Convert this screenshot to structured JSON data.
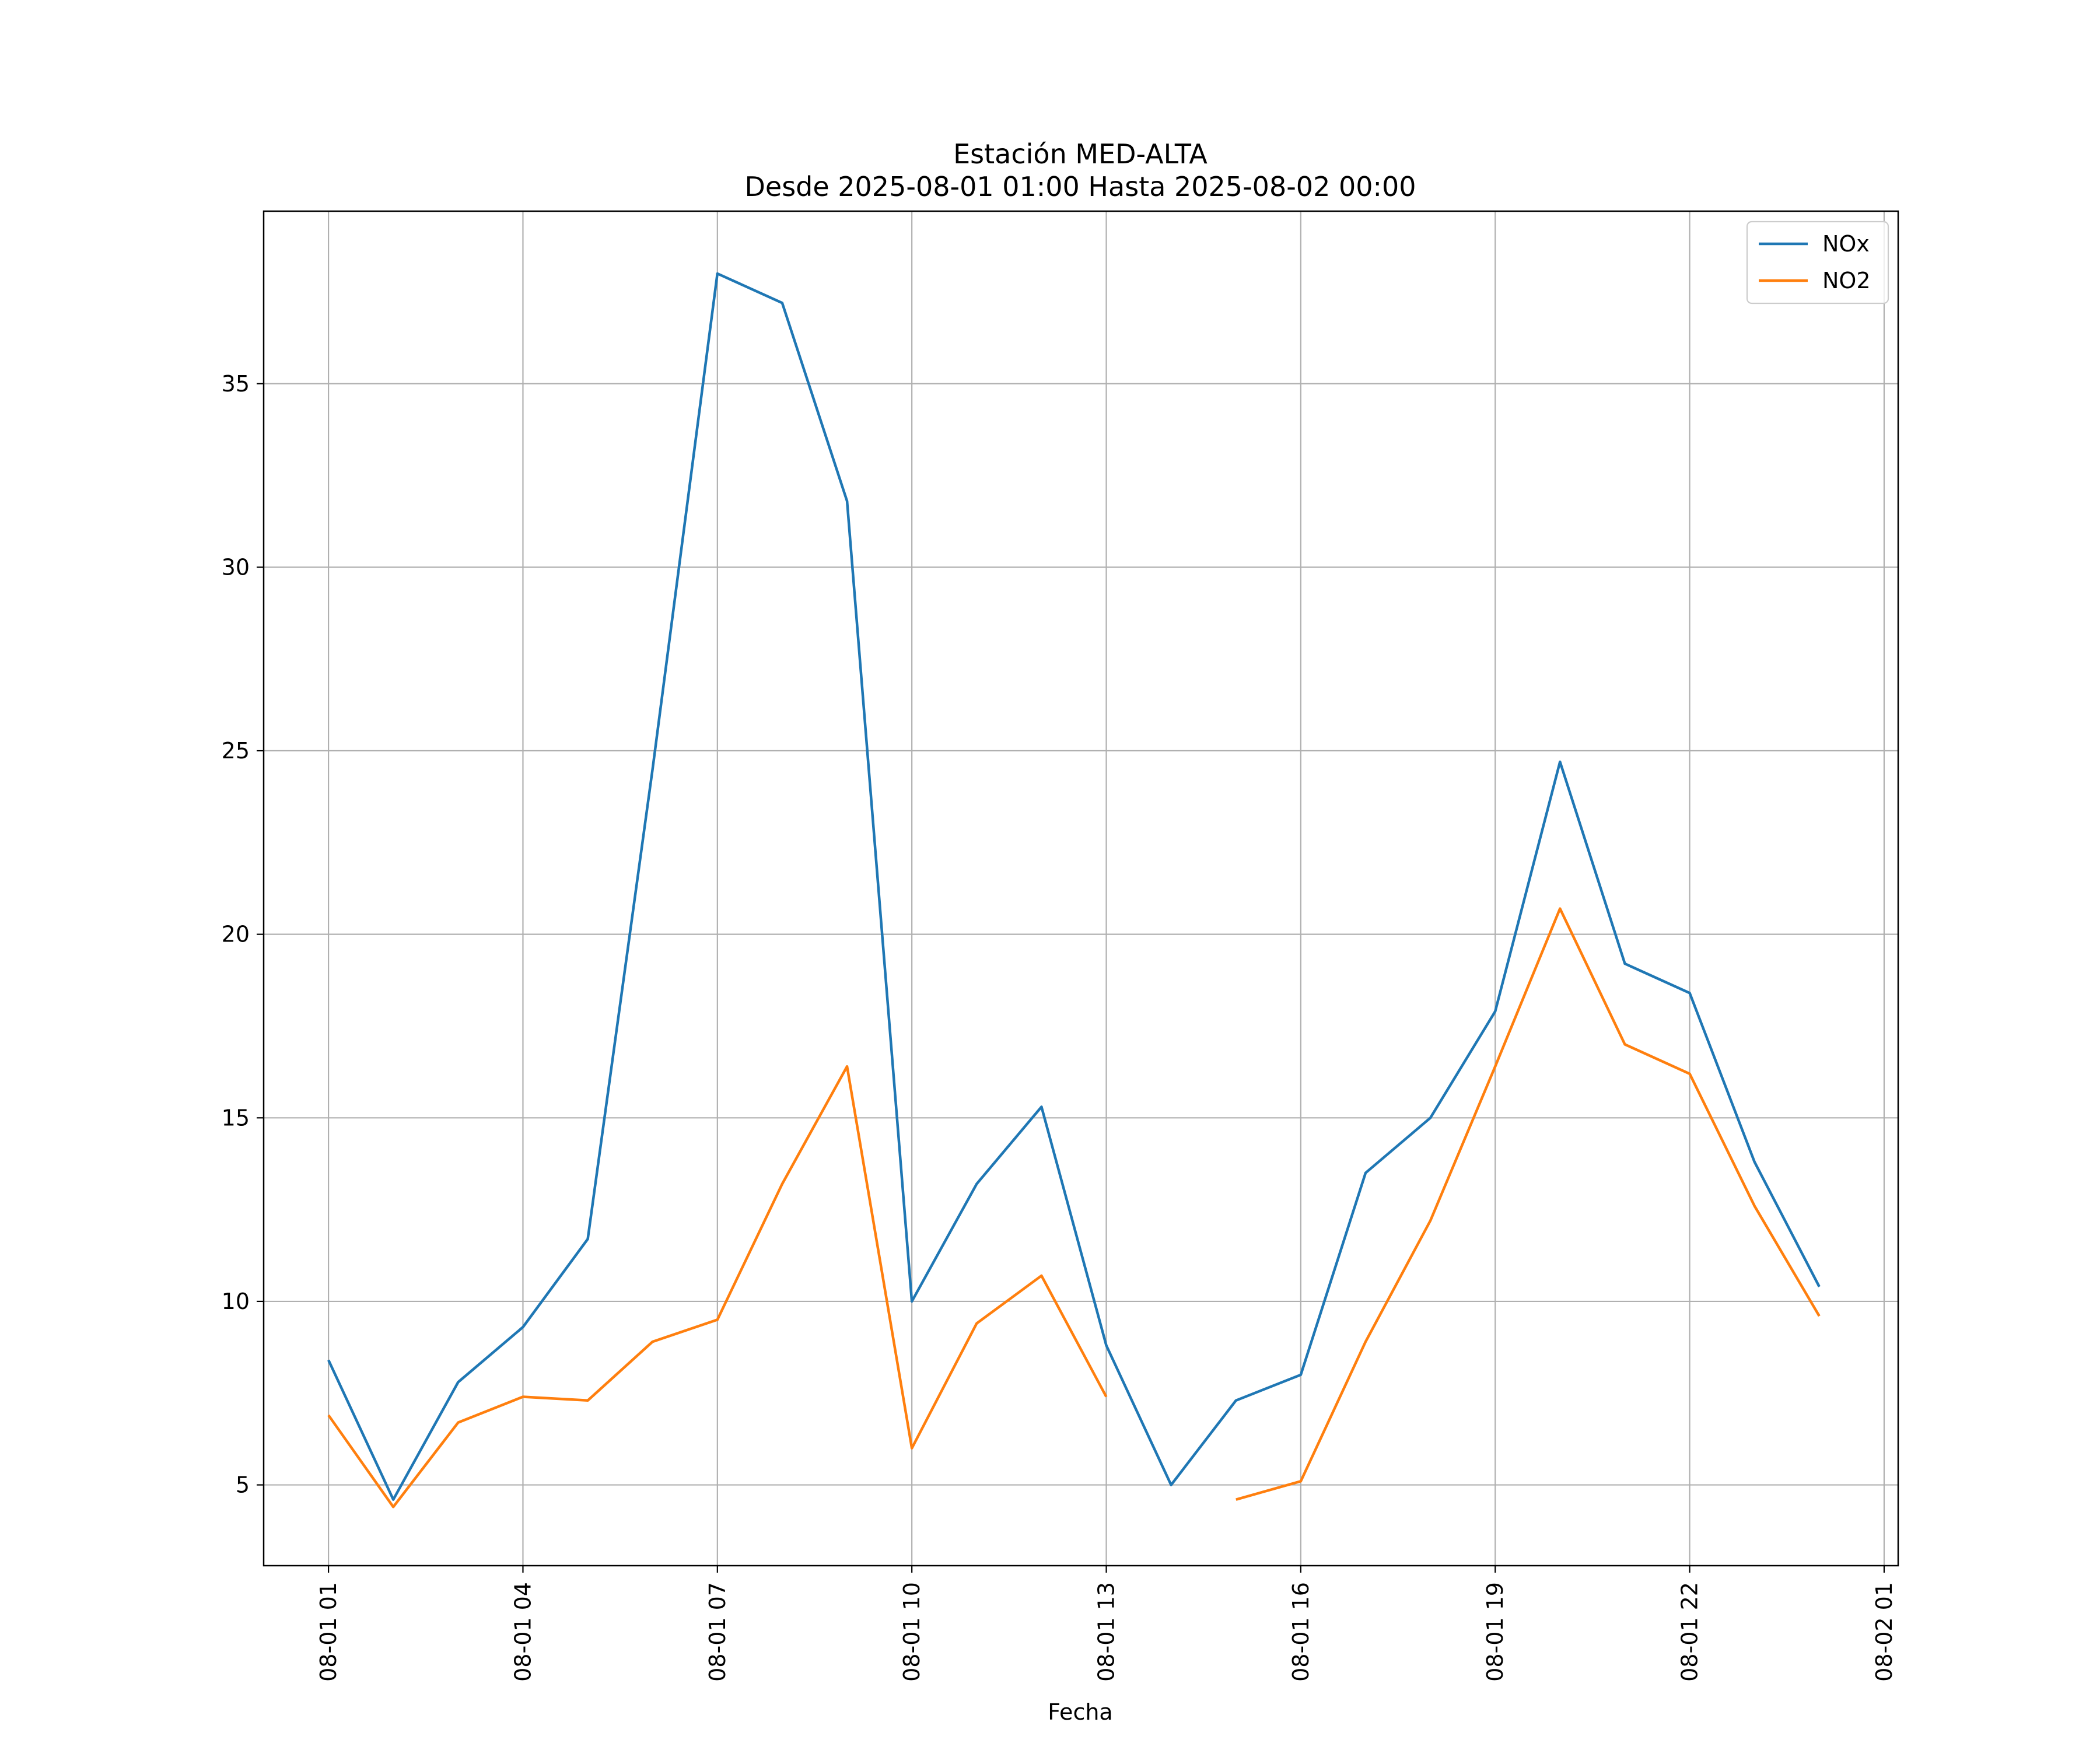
{
  "chart_data": {
    "type": "line",
    "title": "Estación MED-ALTA",
    "subtitle": "Desde 2025-08-01 01:00 Hasta 2025-08-02 00:00",
    "xlabel": "Fecha",
    "ylabel": "",
    "x_tick_labels": [
      "08-01 01",
      "08-01 04",
      "08-01 07",
      "08-01 10",
      "08-01 13",
      "08-01 16",
      "08-01 19",
      "08-01 22",
      "08-02 01"
    ],
    "y_tick_labels": [
      "5",
      "10",
      "15",
      "20",
      "25",
      "30",
      "35"
    ],
    "x": [
      "08-01 01",
      "08-01 02",
      "08-01 03",
      "08-01 04",
      "08-01 05",
      "08-01 06",
      "08-01 07",
      "08-01 08",
      "08-01 09",
      "08-01 10",
      "08-01 11",
      "08-01 12",
      "08-01 13",
      "08-01 14",
      "08-01 15",
      "08-01 16",
      "08-01 17",
      "08-01 18",
      "08-01 19",
      "08-01 20",
      "08-01 21",
      "08-01 22",
      "08-01 23",
      "08-02 00"
    ],
    "x_range": [
      "08-01 00:00",
      "08-02 01:13"
    ],
    "ylim": [
      2.8,
      39.7
    ],
    "grid": true,
    "legend_position": "top-right",
    "series": [
      {
        "name": "NOx",
        "color": "#1f77b4",
        "values": [
          8.4,
          4.6,
          7.8,
          9.3,
          11.7,
          24.5,
          38.0,
          37.2,
          31.8,
          10.0,
          13.2,
          15.3,
          8.8,
          5.0,
          7.3,
          8.0,
          13.5,
          15.0,
          17.9,
          24.7,
          19.2,
          18.4,
          13.8,
          10.4
        ]
      },
      {
        "name": "NO2",
        "color": "#ff7f0e",
        "values": [
          6.9,
          4.4,
          6.7,
          7.4,
          7.3,
          8.9,
          9.5,
          13.2,
          16.4,
          6.0,
          9.4,
          10.7,
          7.4,
          null,
          4.6,
          5.1,
          8.9,
          12.2,
          16.4,
          20.7,
          17.0,
          16.2,
          12.6,
          9.6
        ]
      }
    ]
  }
}
